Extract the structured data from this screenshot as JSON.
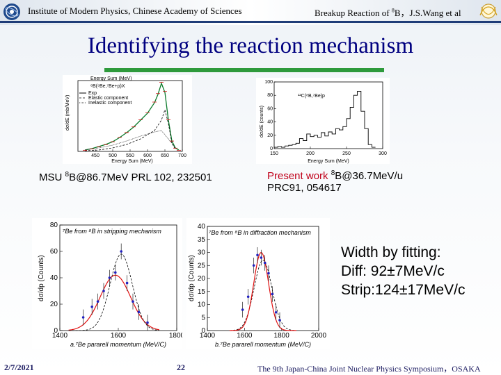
{
  "header": {
    "institution": "Institute of Modern Physics, Chinese Academy of Sciences",
    "talk_title_prefix": "Breakup Reaction of ",
    "talk_title_sup": "8",
    "talk_title_suffix": "B，J.S.Wang  et al"
  },
  "title": "Identifying the reaction mechanism",
  "captions": {
    "msu_prefix": "MSU ",
    "msu_sup": "8",
    "msu_suffix": "B@86.7MeV PRL 102, 232501",
    "present_label": "Present work ",
    "present_sup": "8",
    "present_suffix": "B@36.7MeV/u",
    "present_ref": "PRC91, 054617"
  },
  "fit": {
    "line1": "Width by fitting:",
    "line2": "Diff:   92±7MeV/c",
    "line3": "Strip:124±17MeV/c"
  },
  "footer": {
    "date": "2/7/2021",
    "page": "22",
    "conference": "The 9th Japan-China Joint Nuclear Physics Symposium，OSAKA"
  },
  "chart_data": [
    {
      "type": "line",
      "title": "Energy Sum (MeV)",
      "xlabel": "Energy Sum (MeV)",
      "ylabel": "dσ/dE (mb/MeV)",
      "xlim": [
        400,
        700
      ],
      "x_ticks": [
        450,
        500,
        550,
        600,
        650,
        700
      ],
      "legend": [
        "Exp",
        "Elastic component",
        "Inelastic component"
      ],
      "reaction": "⁸B(⁹Be,⁷Be+p)X",
      "series": [
        {
          "name": "Exp",
          "x": [
            420,
            440,
            460,
            480,
            500,
            520,
            540,
            560,
            580,
            600,
            620,
            630,
            640,
            650,
            660,
            670,
            680,
            690
          ],
          "y": [
            0.02,
            0.04,
            0.07,
            0.1,
            0.14,
            0.2,
            0.27,
            0.35,
            0.45,
            0.55,
            0.7,
            0.82,
            0.98,
            0.85,
            0.45,
            0.15,
            0.05,
            0.02
          ]
        },
        {
          "name": "Elastic component",
          "x": [
            420,
            460,
            500,
            540,
            580,
            620,
            640,
            650,
            660,
            670,
            680
          ],
          "y": [
            0.01,
            0.02,
            0.05,
            0.1,
            0.18,
            0.3,
            0.45,
            0.6,
            0.4,
            0.12,
            0.03
          ]
        },
        {
          "name": "Inelastic component",
          "x": [
            420,
            460,
            500,
            540,
            580,
            620,
            640,
            660,
            680
          ],
          "y": [
            0.02,
            0.05,
            0.09,
            0.15,
            0.22,
            0.28,
            0.3,
            0.18,
            0.05
          ]
        }
      ]
    },
    {
      "type": "bar",
      "title": "¹²C(⁸B,⁷Be)p",
      "xlabel": "Energy Sum (MeV)",
      "ylabel": "dσ/dE (counts)",
      "xlim": [
        150,
        300
      ],
      "ylim": [
        0,
        100
      ],
      "x_ticks": [
        150,
        200,
        250,
        300
      ],
      "y_ticks": [
        0,
        20,
        40,
        60,
        80,
        100
      ],
      "bins": [
        150,
        155,
        160,
        165,
        170,
        175,
        180,
        185,
        190,
        195,
        200,
        205,
        210,
        215,
        220,
        225,
        230,
        235,
        240,
        245,
        250,
        255,
        260,
        265,
        270,
        275,
        280,
        285
      ],
      "values": [
        2,
        3,
        2,
        4,
        5,
        6,
        8,
        15,
        12,
        22,
        18,
        20,
        17,
        24,
        19,
        25,
        22,
        30,
        28,
        33,
        45,
        62,
        80,
        86,
        56,
        30,
        6,
        2
      ]
    },
    {
      "type": "scatter",
      "title": "⁷Be from ⁸B in stripping mechanism",
      "xlabel": "a.⁷Be pararell momentum (MeV/C)",
      "ylabel": "dσ/dp (Counts)",
      "xlim": [
        1400,
        1800
      ],
      "ylim": [
        0,
        80
      ],
      "x_ticks": [
        1400,
        1600,
        1800
      ],
      "y_ticks": [
        0,
        20,
        40,
        60,
        80
      ],
      "x": [
        1480,
        1510,
        1530,
        1550,
        1570,
        1590,
        1610,
        1630,
        1650,
        1670,
        1700
      ],
      "y": [
        10,
        18,
        22,
        30,
        40,
        44,
        60,
        36,
        22,
        14,
        6
      ],
      "fit_width": "124±17MeV/c"
    },
    {
      "type": "scatter",
      "title": "⁷Be from ⁸B in diffraction mechanism",
      "xlabel": "b.⁷Be pararell momentum (MeV/C)",
      "ylabel": "dσ/dp (Counts)",
      "xlim": [
        1400,
        2000
      ],
      "ylim": [
        0,
        40
      ],
      "x_ticks": [
        1400,
        1600,
        1800,
        2000
      ],
      "y_ticks": [
        0,
        5,
        10,
        15,
        20,
        25,
        30,
        35,
        40
      ],
      "x": [
        1590,
        1620,
        1650,
        1670,
        1690,
        1710,
        1730,
        1750,
        1770,
        1790
      ],
      "y": [
        8,
        13,
        25,
        29,
        28,
        26,
        22,
        14,
        7,
        4
      ],
      "fit_width": "92±7MeV/c"
    }
  ]
}
